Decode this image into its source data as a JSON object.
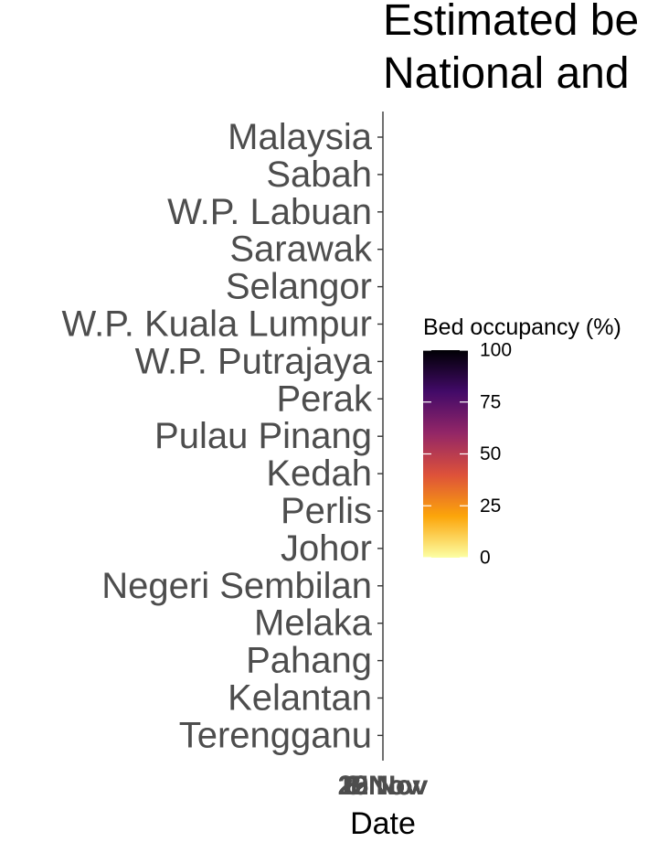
{
  "chart_data": {
    "type": "heatmap",
    "title_lines": [
      "Estimated be",
      "National and"
    ],
    "xlabel": "Date",
    "x_tick_labels": [
      "1 Nov",
      "8 Nov",
      "15 Nov",
      "22 Nov",
      "29 Nov"
    ],
    "y_categories": [
      "Malaysia",
      "Sabah",
      "W.P. Labuan",
      "Sarawak",
      "Selangor",
      "W.P. Kuala Lumpur",
      "W.P. Putrajaya",
      "Perak",
      "Pulau Pinang",
      "Kedah",
      "Perlis",
      "Johor",
      "Negeri Sembilan",
      "Melaka",
      "Pahang",
      "Kelantan",
      "Terengganu"
    ],
    "legend": {
      "title": "Bed occupancy (%)",
      "position": "right",
      "range": [
        0,
        100
      ],
      "ticks": [
        0,
        25,
        50,
        75,
        100
      ],
      "colors": [
        "#fcffa4",
        "#fca50a",
        "#dd513a",
        "#932667",
        "#420a68",
        "#000004"
      ]
    },
    "grid": false
  }
}
